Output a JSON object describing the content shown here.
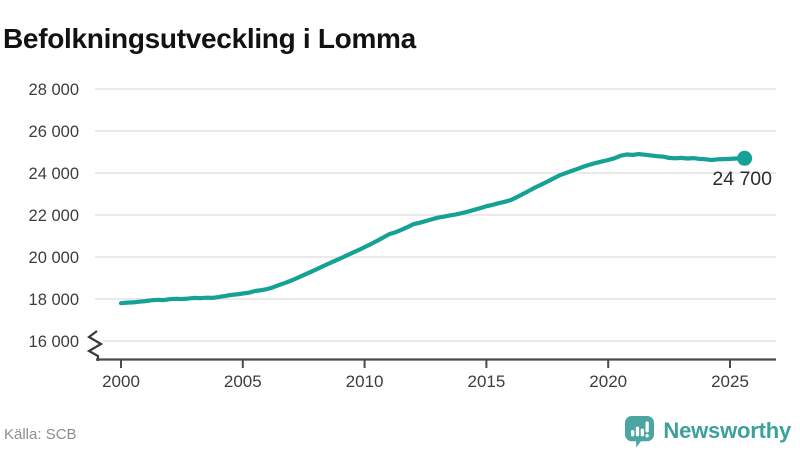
{
  "title": "Befolkningsutveckling i Lomma",
  "source": "Källa: SCB",
  "branding": {
    "name": "Newsworthy",
    "icon": "newsworthy-logo-icon",
    "icon_color": "#4ba6a1",
    "text_color": "#3da19b"
  },
  "chart_data": {
    "type": "line",
    "title": "Befolkningsutveckling i Lomma",
    "xlabel": "",
    "ylabel": "",
    "grid": "horizontal",
    "legend": "none",
    "axis_break_at_bottom": true,
    "xlim": [
      2000,
      2025.6
    ],
    "ylim": [
      16000,
      28000
    ],
    "x_ticks": [
      2000,
      2005,
      2010,
      2015,
      2020,
      2025
    ],
    "x_tick_labels": [
      "2000",
      "2005",
      "2010",
      "2015",
      "2020",
      "2025"
    ],
    "y_ticks": [
      16000,
      18000,
      20000,
      22000,
      24000,
      26000,
      28000
    ],
    "y_tick_labels": [
      "16 000",
      "18 000",
      "20 000",
      "22 000",
      "24 000",
      "26 000",
      "28 000"
    ],
    "line_color": "#15a195",
    "grid_color": "#e4e4e4",
    "axis_color": "#4a4a4a",
    "tick_label_color": "#3d3d3d",
    "end_label": {
      "text": "24 700",
      "value": 24700,
      "color": "#2e2e2e"
    },
    "series": [
      {
        "name": "Befolkning i Lomma",
        "points": [
          [
            2000.0,
            17800
          ],
          [
            2000.25,
            17830
          ],
          [
            2000.5,
            17840
          ],
          [
            2000.75,
            17870
          ],
          [
            2001.0,
            17900
          ],
          [
            2001.25,
            17940
          ],
          [
            2001.5,
            17960
          ],
          [
            2001.75,
            17950
          ],
          [
            2002.0,
            17990
          ],
          [
            2002.25,
            18010
          ],
          [
            2002.5,
            18000
          ],
          [
            2002.75,
            18020
          ],
          [
            2003.0,
            18050
          ],
          [
            2003.25,
            18040
          ],
          [
            2003.5,
            18060
          ],
          [
            2003.75,
            18050
          ],
          [
            2004.0,
            18090
          ],
          [
            2004.25,
            18140
          ],
          [
            2004.5,
            18190
          ],
          [
            2004.75,
            18220
          ],
          [
            2005.0,
            18260
          ],
          [
            2005.25,
            18300
          ],
          [
            2005.5,
            18380
          ],
          [
            2005.75,
            18420
          ],
          [
            2006.0,
            18470
          ],
          [
            2006.25,
            18560
          ],
          [
            2006.5,
            18670
          ],
          [
            2006.75,
            18770
          ],
          [
            2007.0,
            18880
          ],
          [
            2007.25,
            19010
          ],
          [
            2007.5,
            19140
          ],
          [
            2007.75,
            19270
          ],
          [
            2008.0,
            19400
          ],
          [
            2008.25,
            19540
          ],
          [
            2008.5,
            19670
          ],
          [
            2008.75,
            19800
          ],
          [
            2009.0,
            19930
          ],
          [
            2009.25,
            20060
          ],
          [
            2009.5,
            20200
          ],
          [
            2009.75,
            20330
          ],
          [
            2010.0,
            20470
          ],
          [
            2010.25,
            20610
          ],
          [
            2010.5,
            20760
          ],
          [
            2010.75,
            20920
          ],
          [
            2011.0,
            21080
          ],
          [
            2011.25,
            21170
          ],
          [
            2011.5,
            21290
          ],
          [
            2011.75,
            21420
          ],
          [
            2012.0,
            21560
          ],
          [
            2012.25,
            21630
          ],
          [
            2012.5,
            21710
          ],
          [
            2012.75,
            21790
          ],
          [
            2013.0,
            21870
          ],
          [
            2013.25,
            21920
          ],
          [
            2013.5,
            21980
          ],
          [
            2013.75,
            22030
          ],
          [
            2014.0,
            22090
          ],
          [
            2014.25,
            22160
          ],
          [
            2014.5,
            22250
          ],
          [
            2014.75,
            22330
          ],
          [
            2015.0,
            22420
          ],
          [
            2015.25,
            22480
          ],
          [
            2015.5,
            22560
          ],
          [
            2015.75,
            22630
          ],
          [
            2016.0,
            22710
          ],
          [
            2016.25,
            22850
          ],
          [
            2016.5,
            23000
          ],
          [
            2016.75,
            23150
          ],
          [
            2017.0,
            23310
          ],
          [
            2017.25,
            23450
          ],
          [
            2017.5,
            23590
          ],
          [
            2017.75,
            23740
          ],
          [
            2018.0,
            23890
          ],
          [
            2018.25,
            23990
          ],
          [
            2018.5,
            24100
          ],
          [
            2018.75,
            24200
          ],
          [
            2019.0,
            24310
          ],
          [
            2019.25,
            24400
          ],
          [
            2019.5,
            24480
          ],
          [
            2019.75,
            24550
          ],
          [
            2020.0,
            24620
          ],
          [
            2020.25,
            24700
          ],
          [
            2020.5,
            24820
          ],
          [
            2020.75,
            24880
          ],
          [
            2021.0,
            24860
          ],
          [
            2021.25,
            24900
          ],
          [
            2021.5,
            24870
          ],
          [
            2021.75,
            24840
          ],
          [
            2022.0,
            24800
          ],
          [
            2022.25,
            24780
          ],
          [
            2022.5,
            24720
          ],
          [
            2022.75,
            24700
          ],
          [
            2023.0,
            24720
          ],
          [
            2023.25,
            24690
          ],
          [
            2023.5,
            24710
          ],
          [
            2023.75,
            24670
          ],
          [
            2024.0,
            24650
          ],
          [
            2024.25,
            24620
          ],
          [
            2024.5,
            24650
          ],
          [
            2024.75,
            24660
          ],
          [
            2025.0,
            24670
          ],
          [
            2025.25,
            24690
          ],
          [
            2025.6,
            24700
          ]
        ]
      }
    ]
  }
}
